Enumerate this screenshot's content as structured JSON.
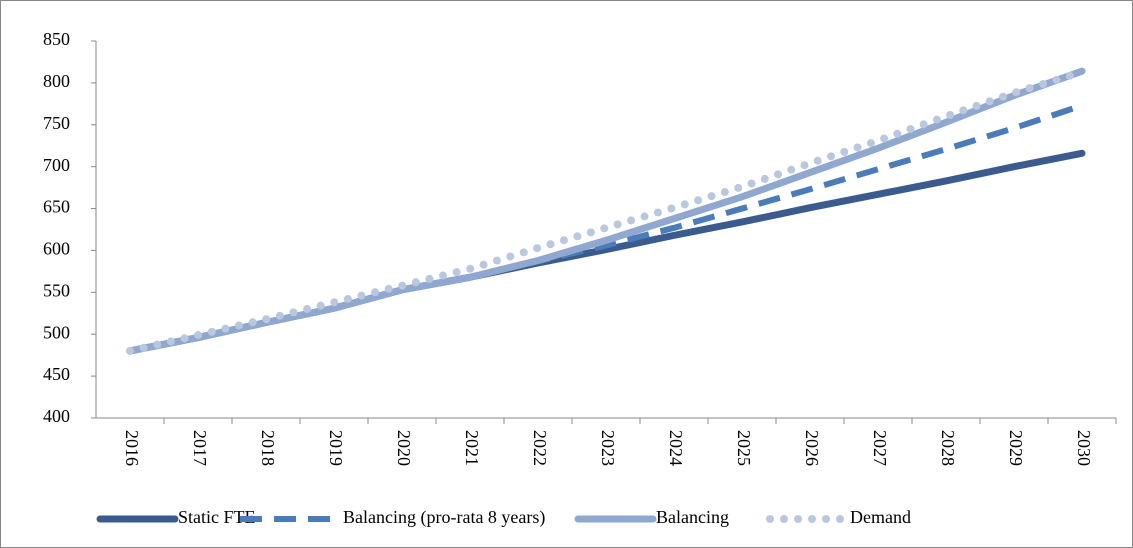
{
  "chart_data": {
    "type": "line",
    "categories": [
      "2016",
      "2017",
      "2018",
      "2019",
      "2020",
      "2021",
      "2022",
      "2023",
      "2024",
      "2025",
      "2026",
      "2027",
      "2028",
      "2029",
      "2030"
    ],
    "series": [
      {
        "name": "Static FTE",
        "color": "#3b5b8e",
        "line_style": "solid",
        "values": [
          480,
          496,
          514,
          531,
          553,
          568,
          585,
          601,
          618,
          634,
          651,
          667,
          683,
          700,
          716
        ]
      },
      {
        "name": "Balancing (pro-rata 8 years)",
        "color": "#4a7cb9",
        "line_style": "dashed",
        "values": [
          480,
          496,
          514,
          531,
          553,
          568,
          587,
          606,
          627,
          650,
          673,
          697,
          721,
          746,
          773
        ]
      },
      {
        "name": "Balancing",
        "color": "#90a8d0",
        "line_style": "solid",
        "values": [
          480,
          496,
          514,
          531,
          553,
          568,
          588,
          612,
          638,
          664,
          693,
          722,
          753,
          785,
          814
        ]
      },
      {
        "name": "Demand",
        "color": "#b9c7df",
        "line_style": "dotted",
        "values": [
          480,
          499,
          518,
          538,
          558,
          578,
          603,
          627,
          651,
          676,
          704,
          731,
          760,
          788,
          813
        ]
      }
    ],
    "ylim": [
      400,
      850
    ],
    "yticks": [
      400,
      450,
      500,
      550,
      600,
      650,
      700,
      750,
      800,
      850
    ],
    "grid": false,
    "legend": "bottom"
  }
}
